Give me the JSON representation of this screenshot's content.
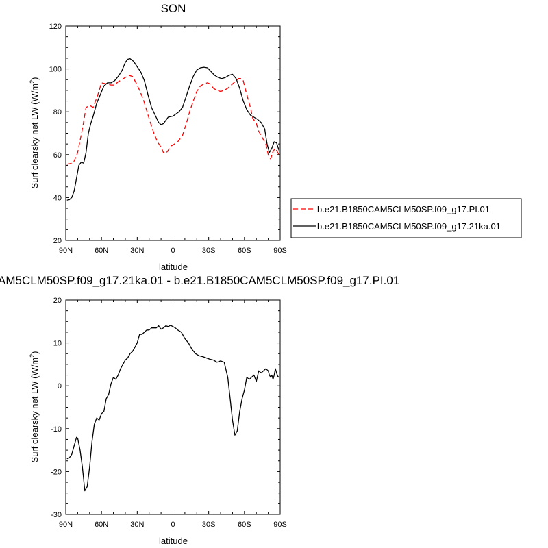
{
  "chart_data": [
    {
      "type": "line",
      "title": "SON",
      "xlabel": "latitude",
      "ylabel": "Surf clearsky net LW (W/m",
      "ylabel_sup": "2",
      "ylabel_close": ")",
      "xlim": [
        90,
        -90
      ],
      "ylim": [
        20,
        120
      ],
      "xticks": [
        90,
        60,
        30,
        0,
        -30,
        -60,
        -90
      ],
      "xtick_labels": [
        "90N",
        "60N",
        "30N",
        "0",
        "30S",
        "60S",
        "90S"
      ],
      "yticks": [
        20,
        40,
        60,
        80,
        100,
        120
      ],
      "ytick_labels": [
        "20",
        "40",
        "60",
        "80",
        "100",
        "120"
      ],
      "grid": false,
      "legend": "right",
      "series": [
        {
          "name": "b.e21.B1850CAM5CLM50SP.f09_g17.PI.01",
          "color": "#ff0000",
          "dash": "dashed",
          "x": [
            89,
            85,
            83,
            80,
            76,
            73,
            70,
            67,
            63,
            60,
            56,
            52,
            49,
            46,
            43,
            40,
            37,
            34,
            31,
            28,
            25,
            22,
            19,
            16,
            13,
            10,
            8,
            6,
            4,
            2,
            0,
            -4,
            -8,
            -11,
            -14,
            -17,
            -20,
            -23,
            -26,
            -29,
            -31,
            -34,
            -37,
            -40,
            -43,
            -46,
            -49,
            -52,
            -55,
            -57,
            -59,
            -61,
            -63,
            -65,
            -67,
            -70,
            -72,
            -75,
            -78,
            -80,
            -82,
            -84,
            -86,
            -88,
            -89
          ],
          "y": [
            55.5,
            56,
            57,
            61,
            72,
            82,
            83,
            82,
            88,
            93.5,
            93,
            92.5,
            92.5,
            94,
            95,
            96,
            97,
            96.5,
            93.5,
            90,
            86,
            80.5,
            75,
            70,
            66,
            63.5,
            61,
            60.5,
            62,
            64,
            64.5,
            66,
            69,
            74,
            80,
            85,
            89.5,
            92,
            93,
            93.5,
            93,
            91,
            90,
            89.5,
            90,
            91,
            92.5,
            94,
            95.5,
            95.5,
            94.5,
            90,
            86,
            82,
            77,
            74.5,
            71,
            68,
            65,
            60,
            58,
            61.5,
            63,
            61,
            60
          ]
        },
        {
          "name": "b.e21.B1850CAM5CLM50SP.f09_g17.21ka.01",
          "color": "#000000",
          "dash": "solid",
          "x": [
            89,
            87,
            85,
            83,
            81,
            79,
            77,
            75,
            73,
            71,
            69,
            67,
            64,
            61,
            58,
            55,
            52,
            49,
            46,
            43,
            40,
            38,
            36,
            33,
            30,
            27,
            24,
            21,
            18,
            15,
            12,
            10,
            8,
            6,
            4,
            2,
            0,
            -2,
            -5,
            -8,
            -11,
            -14,
            -17,
            -20,
            -23,
            -26,
            -29,
            -32,
            -35,
            -38,
            -41,
            -44,
            -47,
            -50,
            -53,
            -56,
            -59,
            -62,
            -65,
            -68,
            -71,
            -74,
            -77,
            -79,
            -81,
            -83,
            -85,
            -87,
            -89
          ],
          "y": [
            38.8,
            39,
            40,
            43,
            49,
            55,
            56.5,
            56,
            61,
            70,
            74.5,
            78,
            84,
            88,
            92,
            93.5,
            93.5,
            94.5,
            96.5,
            99,
            103,
            104.5,
            104.8,
            103.5,
            101,
            98.5,
            94.5,
            88,
            82,
            78.5,
            75,
            74,
            74.5,
            76,
            77.5,
            77.8,
            78,
            78.8,
            80,
            82,
            87,
            92,
            96.5,
            99.5,
            100.5,
            100.8,
            100.5,
            98.8,
            97,
            96,
            95.5,
            96,
            97,
            97.5,
            95.5,
            91,
            85,
            81,
            78.5,
            77.5,
            76.5,
            75,
            72,
            65,
            61,
            63,
            66,
            65.5,
            62
          ]
        }
      ]
    },
    {
      "type": "line",
      "title": "AM5CLM50SP.f09_g17.21ka.01 - b.e21.B1850CAM5CLM50SP.f09_g17.PI.01",
      "xlabel": "latitude",
      "ylabel": "Surf clearsky net LW (W/m",
      "ylabel_sup": "2",
      "ylabel_close": ")",
      "xlim": [
        90,
        -90
      ],
      "ylim": [
        -30,
        20
      ],
      "xticks": [
        90,
        60,
        30,
        0,
        -30,
        -60,
        -90
      ],
      "xtick_labels": [
        "90N",
        "60N",
        "30N",
        "0",
        "30S",
        "60S",
        "90S"
      ],
      "yticks": [
        -30,
        -20,
        -10,
        0,
        10,
        20
      ],
      "ytick_labels": [
        "-30",
        "-20",
        "-10",
        "0",
        "10",
        "20"
      ],
      "grid": false,
      "series": [
        {
          "color": "#000000",
          "dash": "solid",
          "x": [
            89,
            87,
            85,
            83,
            81,
            80,
            78,
            76,
            74,
            72,
            70,
            68,
            66,
            64,
            62,
            60,
            58,
            56,
            54,
            52,
            50,
            48,
            46,
            44,
            42,
            40,
            38,
            36,
            34,
            32,
            30,
            28,
            26,
            24,
            22,
            20,
            18,
            16,
            14,
            12,
            10,
            8,
            6,
            4,
            2,
            0,
            -2,
            -4,
            -7,
            -10,
            -13,
            -16,
            -19,
            -22,
            -25,
            -28,
            -31,
            -34,
            -37,
            -40,
            -43,
            -46,
            -48,
            -50,
            -52,
            -54,
            -56,
            -58,
            -60,
            -62,
            -64,
            -66,
            -68,
            -70,
            -72,
            -74,
            -76,
            -78,
            -80,
            -81,
            -82,
            -83,
            -84,
            -85,
            -86,
            -87,
            -88,
            -89
          ],
          "y": [
            -17,
            -16.8,
            -16,
            -14,
            -12,
            -12.2,
            -15,
            -19,
            -24.5,
            -23.5,
            -19,
            -13,
            -9,
            -7.5,
            -8,
            -6.5,
            -6,
            -3,
            -2,
            0.5,
            2,
            1.5,
            2.5,
            4,
            5,
            6,
            6.5,
            7.5,
            8,
            9,
            10,
            12,
            12,
            12.5,
            13,
            13,
            13.5,
            13.5,
            13.5,
            14,
            13.2,
            13.5,
            14,
            13.8,
            14.1,
            13.8,
            13.5,
            13,
            12.5,
            11,
            10,
            8.5,
            7.5,
            7,
            6.8,
            6.5,
            6.2,
            6,
            5.5,
            5.8,
            5.5,
            2,
            -3,
            -8,
            -11.5,
            -10.5,
            -6,
            -3,
            -1,
            2,
            1.5,
            2,
            2.5,
            1,
            3.5,
            3,
            3.5,
            4,
            3.5,
            2.5,
            2,
            2.5,
            1.5,
            2.5,
            4,
            3,
            2.2,
            2
          ]
        }
      ]
    }
  ]
}
